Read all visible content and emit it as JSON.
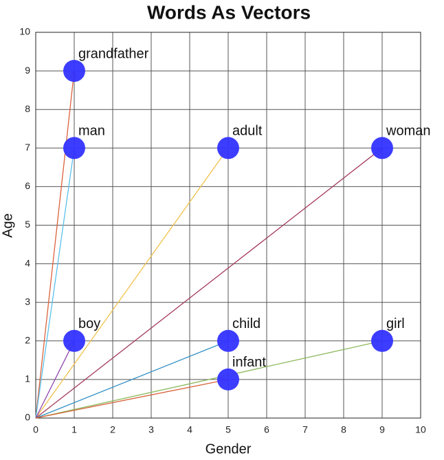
{
  "chart_data": {
    "type": "scatter",
    "title": "Words As Vectors",
    "xlabel": "Gender",
    "ylabel": "Age",
    "labels": [
      "grandfather",
      "man",
      "adult",
      "woman",
      "boy",
      "child",
      "girl",
      "infant"
    ],
    "x": [
      1,
      1,
      5,
      9,
      1,
      5,
      9,
      5
    ],
    "values": [
      9,
      7,
      7,
      7,
      2,
      2,
      2,
      1
    ],
    "arrow_colors": [
      "#d9623b",
      "#5bc0eb",
      "#f0c14b",
      "#a3385c",
      "#8e44ad",
      "#2f8fc4",
      "#8ab85a",
      "#d9623b"
    ],
    "color": "#3333ff",
    "xlim": [
      0,
      10
    ],
    "ylim": [
      0,
      10
    ],
    "xticks": [
      0,
      1,
      2,
      3,
      4,
      5,
      6,
      7,
      8,
      9,
      10
    ],
    "yticks": [
      0,
      1,
      2,
      3,
      4,
      5,
      6,
      7,
      8,
      9,
      10
    ],
    "grid": true
  }
}
